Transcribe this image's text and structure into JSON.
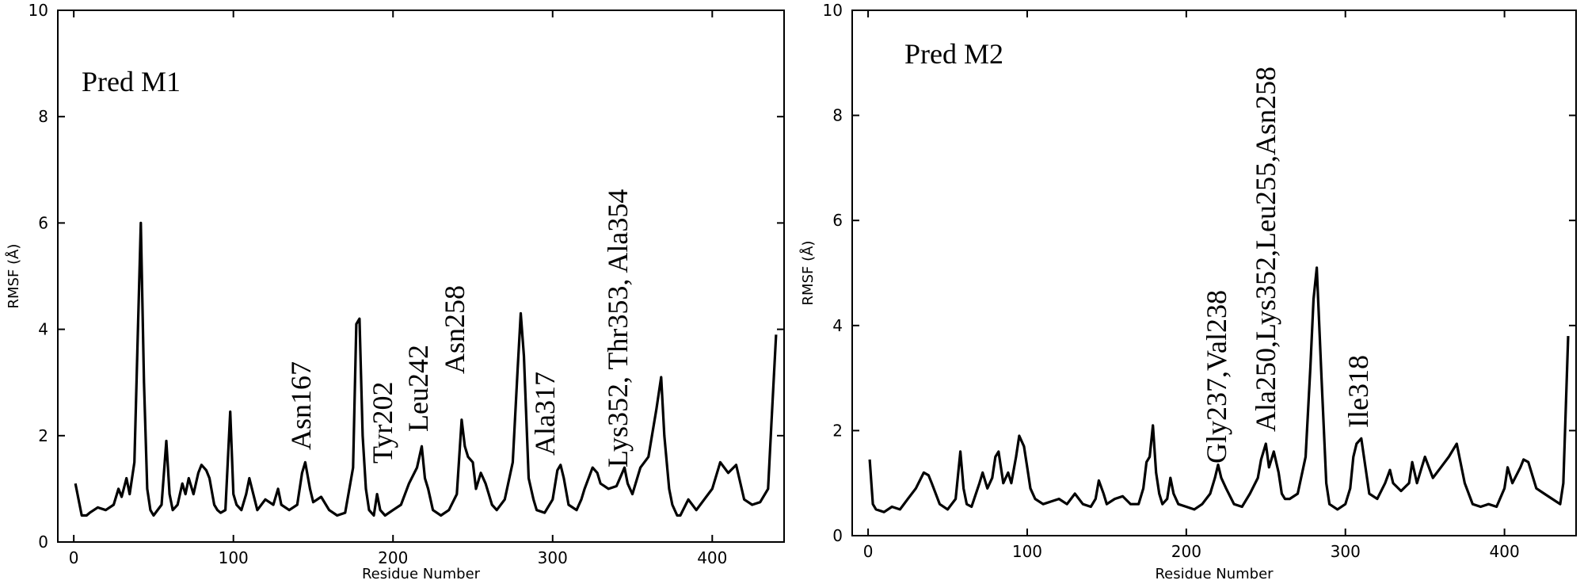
{
  "chart_data": [
    {
      "type": "line",
      "panel_label": "Pred M1",
      "xlabel": "Residue Number",
      "ylabel": "RMSF (Å)",
      "xlim": [
        -10,
        445
      ],
      "ylim": [
        0,
        10
      ],
      "xticks": [
        0,
        100,
        200,
        300,
        400
      ],
      "yticks": [
        0,
        2,
        4,
        6,
        8,
        10
      ],
      "grid": false,
      "annotations": [
        "Asn167",
        "Tyr202",
        "Leu242",
        "Asn258",
        "Ala317",
        "Lys352, Thr353, Ala354"
      ],
      "x": [
        1,
        5,
        8,
        10,
        15,
        20,
        25,
        28,
        30,
        33,
        35,
        38,
        40,
        42,
        44,
        46,
        48,
        50,
        55,
        58,
        60,
        62,
        65,
        68,
        70,
        72,
        75,
        78,
        80,
        83,
        85,
        88,
        90,
        92,
        95,
        98,
        100,
        102,
        105,
        108,
        110,
        115,
        120,
        125,
        128,
        130,
        135,
        140,
        143,
        145,
        148,
        150,
        155,
        160,
        165,
        170,
        175,
        177,
        179,
        181,
        183,
        185,
        188,
        190,
        192,
        195,
        200,
        205,
        210,
        215,
        218,
        220,
        222,
        225,
        230,
        235,
        240,
        243,
        245,
        247,
        250,
        252,
        255,
        258,
        260,
        262,
        265,
        270,
        275,
        278,
        280,
        282,
        285,
        288,
        290,
        295,
        300,
        303,
        305,
        307,
        310,
        315,
        318,
        320,
        325,
        328,
        330,
        335,
        340,
        345,
        347,
        350,
        355,
        360,
        365,
        368,
        370,
        373,
        375,
        378,
        380,
        385,
        390,
        395,
        400,
        405,
        410,
        415,
        420,
        425,
        430,
        435,
        437,
        440
      ],
      "y": [
        1.1,
        0.5,
        0.5,
        0.55,
        0.65,
        0.6,
        0.7,
        1.0,
        0.85,
        1.2,
        0.9,
        1.5,
        3.8,
        6.0,
        3.0,
        1.0,
        0.6,
        0.5,
        0.7,
        1.9,
        0.9,
        0.6,
        0.7,
        1.1,
        0.9,
        1.2,
        0.9,
        1.3,
        1.45,
        1.35,
        1.2,
        0.7,
        0.6,
        0.55,
        0.6,
        2.45,
        0.9,
        0.7,
        0.6,
        0.9,
        1.2,
        0.6,
        0.8,
        0.7,
        1.0,
        0.7,
        0.6,
        0.7,
        1.3,
        1.5,
        1.0,
        0.75,
        0.85,
        0.6,
        0.5,
        0.55,
        1.4,
        4.1,
        4.2,
        2.0,
        1.0,
        0.6,
        0.5,
        0.9,
        0.6,
        0.5,
        0.6,
        0.7,
        1.1,
        1.4,
        1.8,
        1.2,
        1.0,
        0.6,
        0.5,
        0.6,
        0.9,
        2.3,
        1.8,
        1.6,
        1.5,
        1.0,
        1.3,
        1.1,
        0.9,
        0.7,
        0.6,
        0.8,
        1.5,
        3.2,
        4.3,
        3.5,
        1.2,
        0.8,
        0.6,
        0.55,
        0.8,
        1.35,
        1.45,
        1.2,
        0.7,
        0.6,
        0.8,
        1.0,
        1.4,
        1.3,
        1.1,
        1.0,
        1.05,
        1.4,
        1.1,
        0.9,
        1.4,
        1.6,
        2.5,
        3.1,
        2.0,
        1.0,
        0.7,
        0.5,
        0.5,
        0.8,
        0.6,
        0.8,
        1.0,
        1.5,
        1.3,
        1.45,
        0.8,
        0.7,
        0.75,
        1.0,
        2.2,
        3.9
      ]
    },
    {
      "type": "line",
      "panel_label": "Pred M2",
      "xlabel": "Residue Number",
      "ylabel": "RMSF (Å)",
      "xlim": [
        -10,
        445
      ],
      "ylim": [
        0,
        10
      ],
      "xticks": [
        0,
        100,
        200,
        300,
        400
      ],
      "yticks": [
        0,
        2,
        4,
        6,
        8,
        10
      ],
      "grid": false,
      "annotations": [
        "Gly237,Val238",
        "Ala250,Lys352,Leu255,Asn258",
        "Ile318"
      ],
      "x": [
        1,
        3,
        5,
        10,
        15,
        20,
        25,
        30,
        35,
        38,
        40,
        45,
        50,
        55,
        58,
        60,
        62,
        65,
        70,
        72,
        75,
        78,
        80,
        82,
        85,
        88,
        90,
        93,
        95,
        98,
        100,
        102,
        105,
        110,
        115,
        120,
        125,
        130,
        135,
        140,
        143,
        145,
        148,
        150,
        155,
        160,
        165,
        170,
        173,
        175,
        177,
        179,
        181,
        183,
        185,
        188,
        190,
        192,
        195,
        200,
        205,
        210,
        215,
        218,
        220,
        222,
        225,
        230,
        235,
        240,
        245,
        247,
        250,
        252,
        255,
        258,
        260,
        262,
        265,
        270,
        275,
        278,
        280,
        282,
        285,
        288,
        290,
        295,
        300,
        303,
        305,
        307,
        310,
        315,
        320,
        325,
        328,
        330,
        335,
        340,
        342,
        345,
        348,
        350,
        355,
        360,
        365,
        368,
        370,
        375,
        380,
        385,
        390,
        395,
        400,
        402,
        405,
        410,
        412,
        415,
        420,
        425,
        430,
        435,
        437,
        440
      ],
      "y": [
        1.45,
        0.6,
        0.5,
        0.45,
        0.55,
        0.5,
        0.7,
        0.9,
        1.2,
        1.15,
        1.0,
        0.6,
        0.5,
        0.7,
        1.6,
        0.9,
        0.6,
        0.55,
        1.0,
        1.2,
        0.9,
        1.1,
        1.5,
        1.6,
        1.0,
        1.2,
        1.0,
        1.5,
        1.9,
        1.7,
        1.3,
        0.9,
        0.7,
        0.6,
        0.65,
        0.7,
        0.6,
        0.8,
        0.6,
        0.55,
        0.7,
        1.05,
        0.8,
        0.6,
        0.7,
        0.75,
        0.6,
        0.6,
        0.9,
        1.4,
        1.5,
        2.1,
        1.2,
        0.8,
        0.6,
        0.7,
        1.1,
        0.8,
        0.6,
        0.55,
        0.5,
        0.6,
        0.8,
        1.1,
        1.35,
        1.1,
        0.9,
        0.6,
        0.55,
        0.8,
        1.1,
        1.45,
        1.75,
        1.3,
        1.6,
        1.2,
        0.8,
        0.7,
        0.7,
        0.8,
        1.5,
        3.2,
        4.5,
        5.1,
        3.0,
        1.0,
        0.6,
        0.5,
        0.6,
        0.9,
        1.5,
        1.75,
        1.85,
        0.8,
        0.7,
        1.0,
        1.25,
        1.0,
        0.85,
        1.0,
        1.4,
        1.0,
        1.3,
        1.5,
        1.1,
        1.3,
        1.5,
        1.65,
        1.75,
        1.0,
        0.6,
        0.55,
        0.6,
        0.55,
        0.9,
        1.3,
        1.0,
        1.3,
        1.45,
        1.4,
        0.9,
        0.8,
        0.7,
        0.6,
        1.0,
        3.8
      ]
    }
  ]
}
